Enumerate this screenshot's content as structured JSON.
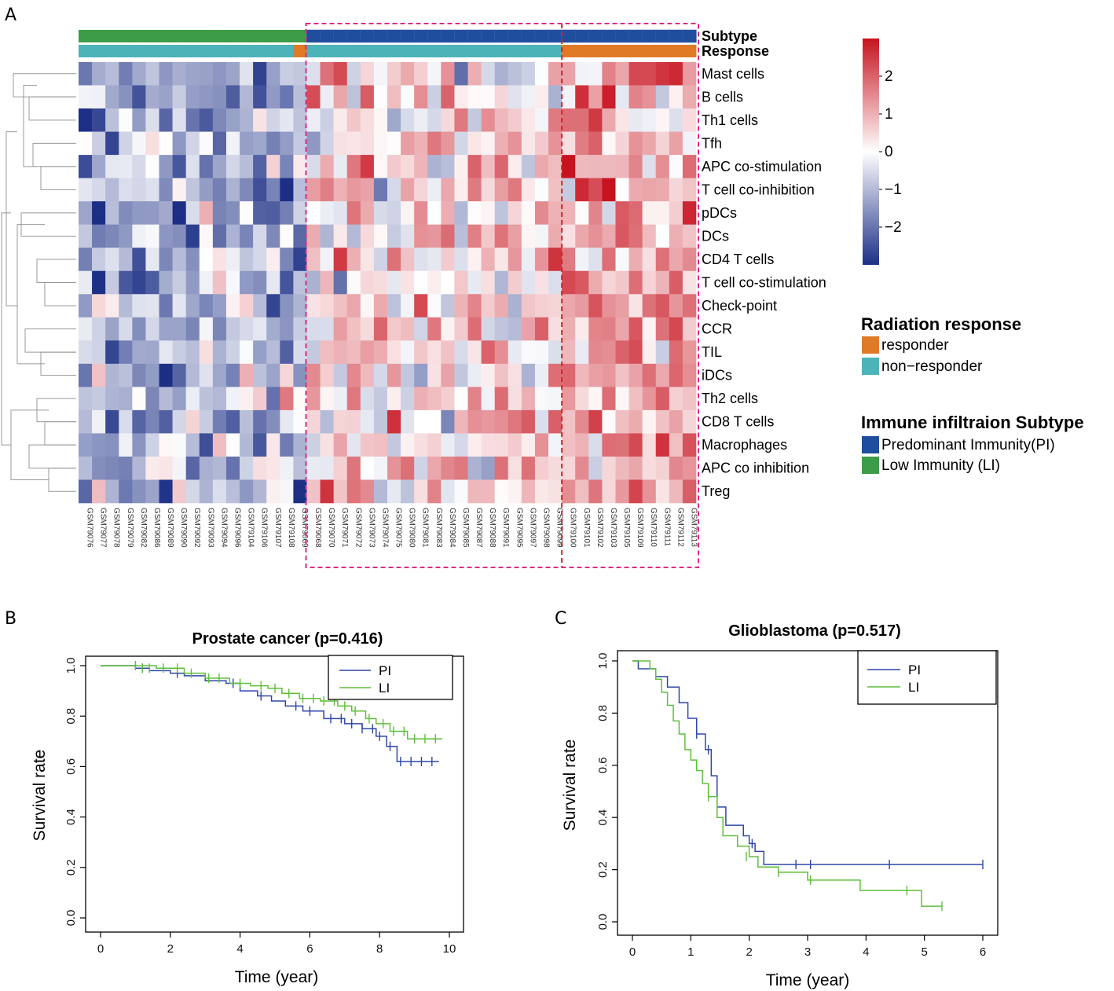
{
  "panels": {
    "a": "A",
    "b": "B",
    "c": "C"
  },
  "heatmap": {
    "type": "heatmap",
    "annotation_labels": {
      "subtype": "Subtype",
      "response": "Response"
    },
    "rows": [
      "Mast cells",
      "B cells",
      "Th1 cells",
      "Tfh",
      "APC co-stimulation",
      "T cell co-inhibition",
      "pDCs",
      "DCs",
      "CD4 T cells",
      "T cell co-stimulation",
      "Check-point",
      "CCR",
      "TIL",
      "iDCs",
      "Th2 cells",
      "CD8 T cells",
      "Macrophages",
      "APC co inhibition",
      "Treg"
    ],
    "columns": [
      "GSM79076",
      "GSM79077",
      "GSM79078",
      "GSM79079",
      "GSM79082",
      "GSM79086",
      "GSM79089",
      "GSM79090",
      "GSM79092",
      "GSM79093",
      "GSM79094",
      "GSM79096",
      "GSM79104",
      "GSM79106",
      "GSM79107",
      "GSM79108",
      "GSM79069",
      "GSM79068",
      "GSM79070",
      "GSM79071",
      "GSM79072",
      "GSM79073",
      "GSM79074",
      "GSM79075",
      "GSM79080",
      "GSM79081",
      "GSM79083",
      "GSM79084",
      "GSM79085",
      "GSM79087",
      "GSM79088",
      "GSM79091",
      "GSM79095",
      "GSM79097",
      "GSM79098",
      "GSM79099",
      "GSM79100",
      "GSM79101",
      "GSM79102",
      "GSM79103",
      "GSM79105",
      "GSM79109",
      "GSM79110",
      "GSM79111",
      "GSM79112",
      "GSM79113"
    ],
    "subtype": [
      "LI",
      "LI",
      "LI",
      "LI",
      "LI",
      "LI",
      "LI",
      "LI",
      "LI",
      "LI",
      "LI",
      "LI",
      "LI",
      "LI",
      "LI",
      "LI",
      "LI",
      "PI",
      "PI",
      "PI",
      "PI",
      "PI",
      "PI",
      "PI",
      "PI",
      "PI",
      "PI",
      "PI",
      "PI",
      "PI",
      "PI",
      "PI",
      "PI",
      "PI",
      "PI",
      "PI",
      "PI",
      "PI",
      "PI",
      "PI",
      "PI",
      "PI",
      "PI",
      "PI",
      "PI",
      "PI"
    ],
    "response": [
      "NR",
      "NR",
      "NR",
      "NR",
      "NR",
      "NR",
      "NR",
      "NR",
      "NR",
      "NR",
      "NR",
      "NR",
      "NR",
      "NR",
      "NR",
      "NR",
      "R",
      "NR",
      "NR",
      "NR",
      "NR",
      "NR",
      "NR",
      "NR",
      "NR",
      "NR",
      "NR",
      "NR",
      "NR",
      "NR",
      "NR",
      "NR",
      "NR",
      "NR",
      "NR",
      "NR",
      "R",
      "R",
      "R",
      "R",
      "R",
      "R",
      "R",
      "R",
      "R",
      "R"
    ],
    "colorbar": {
      "min": -3,
      "max": 3,
      "ticks": [
        2,
        1,
        0,
        -1,
        -2
      ],
      "tick_labels": [
        "2",
        "1",
        "0",
        "−1",
        "−2"
      ],
      "low_color": "#1c2f85",
      "mid_color": "#ffffff",
      "high_color": "#c7131f"
    },
    "seed": 7
  },
  "legends": {
    "radiation": {
      "title": "Radiation response",
      "items": [
        {
          "label": "responder",
          "color": "#e07a26"
        },
        {
          "label": "non−responder",
          "color": "#4cb3b8"
        }
      ]
    },
    "subtype": {
      "title": "Immune infiltraion Subtype",
      "items": [
        {
          "label": "Predominant Immunity(PI)",
          "color": "#1f4e9e"
        },
        {
          "label": "Low Immunity (LI)",
          "color": "#3d9c47"
        }
      ]
    }
  },
  "colors": {
    "responder": "#e07a26",
    "non_responder": "#4cb3b8",
    "PI": "#1f4e9e",
    "LI": "#3d9c47",
    "highlight": "#e02a86",
    "split": "#e02020",
    "km_pi": "#2f46a8",
    "km_li": "#5fbf3a"
  },
  "chart_data": [
    {
      "type": "line",
      "title": "Prostate cancer (p=0.416)",
      "xlabel": "Time (year)",
      "ylabel": "Survival rate",
      "xlim": [
        0,
        10
      ],
      "ylim": [
        0,
        1
      ],
      "xticks": [
        0,
        2,
        4,
        6,
        8,
        10
      ],
      "yticks": [
        0.0,
        0.2,
        0.4,
        0.6,
        0.8,
        1.0
      ],
      "ytick_labels": [
        "0.0",
        "0.2",
        "0.4",
        "0.6",
        "0.8",
        "1.0"
      ],
      "legend_position": "top-right",
      "series": [
        {
          "name": "PI",
          "x": [
            0,
            1.0,
            1.4,
            2.0,
            2.4,
            3.0,
            3.6,
            4.0,
            4.5,
            4.9,
            5.3,
            5.8,
            6.4,
            7.0,
            7.5,
            7.9,
            8.2,
            8.5,
            9.7
          ],
          "y": [
            1.0,
            0.99,
            0.98,
            0.97,
            0.96,
            0.94,
            0.93,
            0.9,
            0.88,
            0.86,
            0.84,
            0.82,
            0.79,
            0.77,
            0.75,
            0.72,
            0.68,
            0.62,
            0.62
          ],
          "censors": [
            [
              1.2,
              0.99
            ],
            [
              2.2,
              0.97
            ],
            [
              3.8,
              0.93
            ],
            [
              4.6,
              0.88
            ],
            [
              5.6,
              0.84
            ],
            [
              6.0,
              0.82
            ],
            [
              6.6,
              0.79
            ],
            [
              6.9,
              0.79
            ],
            [
              7.2,
              0.77
            ],
            [
              7.5,
              0.75
            ],
            [
              7.8,
              0.75
            ],
            [
              8.0,
              0.72
            ],
            [
              8.3,
              0.68
            ],
            [
              8.6,
              0.62
            ],
            [
              8.9,
              0.62
            ],
            [
              9.2,
              0.62
            ],
            [
              9.5,
              0.62
            ]
          ]
        },
        {
          "name": "LI",
          "x": [
            0,
            1.6,
            2.4,
            3.0,
            3.7,
            4.3,
            4.8,
            5.2,
            5.7,
            6.3,
            6.8,
            7.2,
            7.6,
            7.9,
            8.3,
            8.8,
            9.8
          ],
          "y": [
            1.0,
            0.99,
            0.97,
            0.95,
            0.93,
            0.92,
            0.91,
            0.89,
            0.87,
            0.86,
            0.84,
            0.82,
            0.79,
            0.77,
            0.74,
            0.71,
            0.71
          ],
          "censors": [
            [
              1.0,
              1.0
            ],
            [
              1.2,
              0.99
            ],
            [
              1.4,
              0.99
            ],
            [
              1.8,
              0.99
            ],
            [
              2.2,
              0.99
            ],
            [
              2.6,
              0.97
            ],
            [
              3.1,
              0.95
            ],
            [
              3.4,
              0.95
            ],
            [
              4.0,
              0.93
            ],
            [
              4.6,
              0.92
            ],
            [
              5.0,
              0.91
            ],
            [
              5.4,
              0.89
            ],
            [
              5.8,
              0.87
            ],
            [
              6.1,
              0.87
            ],
            [
              6.4,
              0.86
            ],
            [
              6.7,
              0.86
            ],
            [
              7.0,
              0.84
            ],
            [
              7.3,
              0.82
            ],
            [
              7.7,
              0.79
            ],
            [
              8.1,
              0.77
            ],
            [
              8.4,
              0.74
            ],
            [
              8.7,
              0.74
            ],
            [
              9.0,
              0.71
            ],
            [
              9.3,
              0.71
            ],
            [
              9.6,
              0.71
            ]
          ]
        }
      ]
    },
    {
      "type": "line",
      "title": "Glioblastoma (p=0.517)",
      "xlabel": "Time (year)",
      "ylabel": "Survival rate",
      "xlim": [
        0,
        6
      ],
      "ylim": [
        0,
        1
      ],
      "xticks": [
        0,
        1,
        2,
        3,
        4,
        5,
        6
      ],
      "yticks": [
        0.0,
        0.2,
        0.4,
        0.6,
        0.8,
        1.0
      ],
      "ytick_labels": [
        "0.0",
        "0.2",
        "0.4",
        "0.6",
        "0.8",
        "1.0"
      ],
      "legend_position": "top-right",
      "series": [
        {
          "name": "PI",
          "x": [
            0,
            0.1,
            0.4,
            0.6,
            0.8,
            0.95,
            1.1,
            1.25,
            1.35,
            1.45,
            1.6,
            1.9,
            2.0,
            2.1,
            2.25,
            6.0
          ],
          "y": [
            1.0,
            0.97,
            0.94,
            0.9,
            0.84,
            0.78,
            0.72,
            0.66,
            0.56,
            0.44,
            0.37,
            0.33,
            0.3,
            0.27,
            0.22,
            0.22
          ],
          "censors": [
            [
              1.1,
              0.72
            ],
            [
              1.3,
              0.66
            ],
            [
              2.05,
              0.3
            ],
            [
              2.8,
              0.22
            ],
            [
              3.05,
              0.22
            ],
            [
              4.4,
              0.22
            ],
            [
              6.0,
              0.22
            ]
          ]
        },
        {
          "name": "LI",
          "x": [
            0,
            0.3,
            0.4,
            0.5,
            0.6,
            0.7,
            0.8,
            0.9,
            1.0,
            1.1,
            1.2,
            1.3,
            1.45,
            1.55,
            1.8,
            2.0,
            2.15,
            2.5,
            3.0,
            3.9,
            4.95,
            5.3
          ],
          "y": [
            1.0,
            0.97,
            0.93,
            0.88,
            0.83,
            0.77,
            0.72,
            0.66,
            0.62,
            0.58,
            0.53,
            0.48,
            0.4,
            0.33,
            0.29,
            0.25,
            0.21,
            0.19,
            0.16,
            0.12,
            0.06,
            0.06
          ],
          "censors": [
            [
              1.3,
              0.48
            ],
            [
              1.95,
              0.25
            ],
            [
              2.5,
              0.19
            ],
            [
              3.05,
              0.16
            ],
            [
              4.7,
              0.12
            ],
            [
              5.3,
              0.06
            ]
          ]
        }
      ]
    }
  ],
  "km_legend": {
    "pi": "PI",
    "li": "LI"
  }
}
